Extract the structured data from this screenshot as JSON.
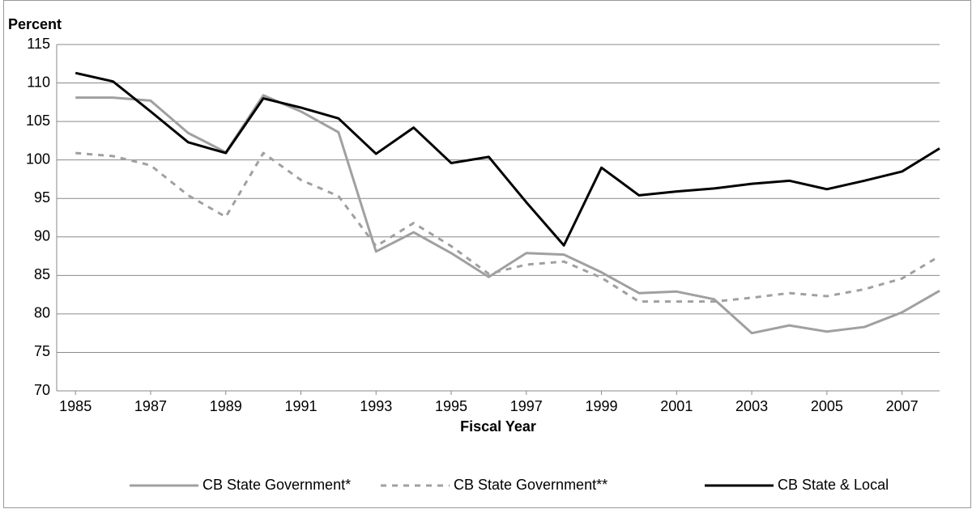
{
  "chart_data": {
    "type": "line",
    "y_label": "Percent",
    "x_label": "Fiscal Year",
    "x": [
      1985,
      1986,
      1987,
      1988,
      1989,
      1990,
      1991,
      1992,
      1993,
      1994,
      1995,
      1996,
      1997,
      1998,
      1999,
      2000,
      2001,
      2002,
      2003,
      2004,
      2005,
      2006,
      2007,
      2008
    ],
    "xlim": [
      1984.5,
      2008
    ],
    "xticks": [
      1985,
      1987,
      1989,
      1991,
      1993,
      1995,
      1997,
      1999,
      2001,
      2003,
      2005,
      2007
    ],
    "ylim": [
      70,
      115
    ],
    "yticks": [
      70,
      75,
      80,
      85,
      90,
      95,
      100,
      105,
      110,
      115
    ],
    "grid": true,
    "legend": "bottom",
    "series": [
      {
        "name": "CB State Government*",
        "color": "#a0a0a0",
        "dashed": false,
        "values": [
          108.1,
          108.1,
          107.7,
          103.5,
          101,
          108.4,
          106.3,
          103.6,
          88.1,
          90.6,
          87.9,
          84.8,
          87.9,
          87.7,
          85.4,
          82.7,
          82.9,
          81.9,
          77.5,
          78.5,
          77.7,
          78.3,
          80.2,
          83
        ]
      },
      {
        "name": "CB State Government**",
        "color": "#a0a0a0",
        "dashed": true,
        "values": [
          100.9,
          100.5,
          99.3,
          95.4,
          92.6,
          100.9,
          97.4,
          95.3,
          88.8,
          91.8,
          88.8,
          85.2,
          86.4,
          86.8,
          84.7,
          81.6,
          81.6,
          81.6,
          82.1,
          82.7,
          82.3,
          83.2,
          84.6,
          87.5
        ]
      },
      {
        "name": "CB State & Local",
        "color": "#000000",
        "dashed": false,
        "values": [
          111.3,
          110.2,
          106.3,
          102.3,
          100.9,
          108,
          106.8,
          105.4,
          100.8,
          104.2,
          99.6,
          100.4,
          94.5,
          88.9,
          99,
          95.4,
          95.9,
          96.3,
          96.9,
          97.3,
          96.2,
          97.3,
          98.5,
          101.5
        ]
      }
    ]
  }
}
